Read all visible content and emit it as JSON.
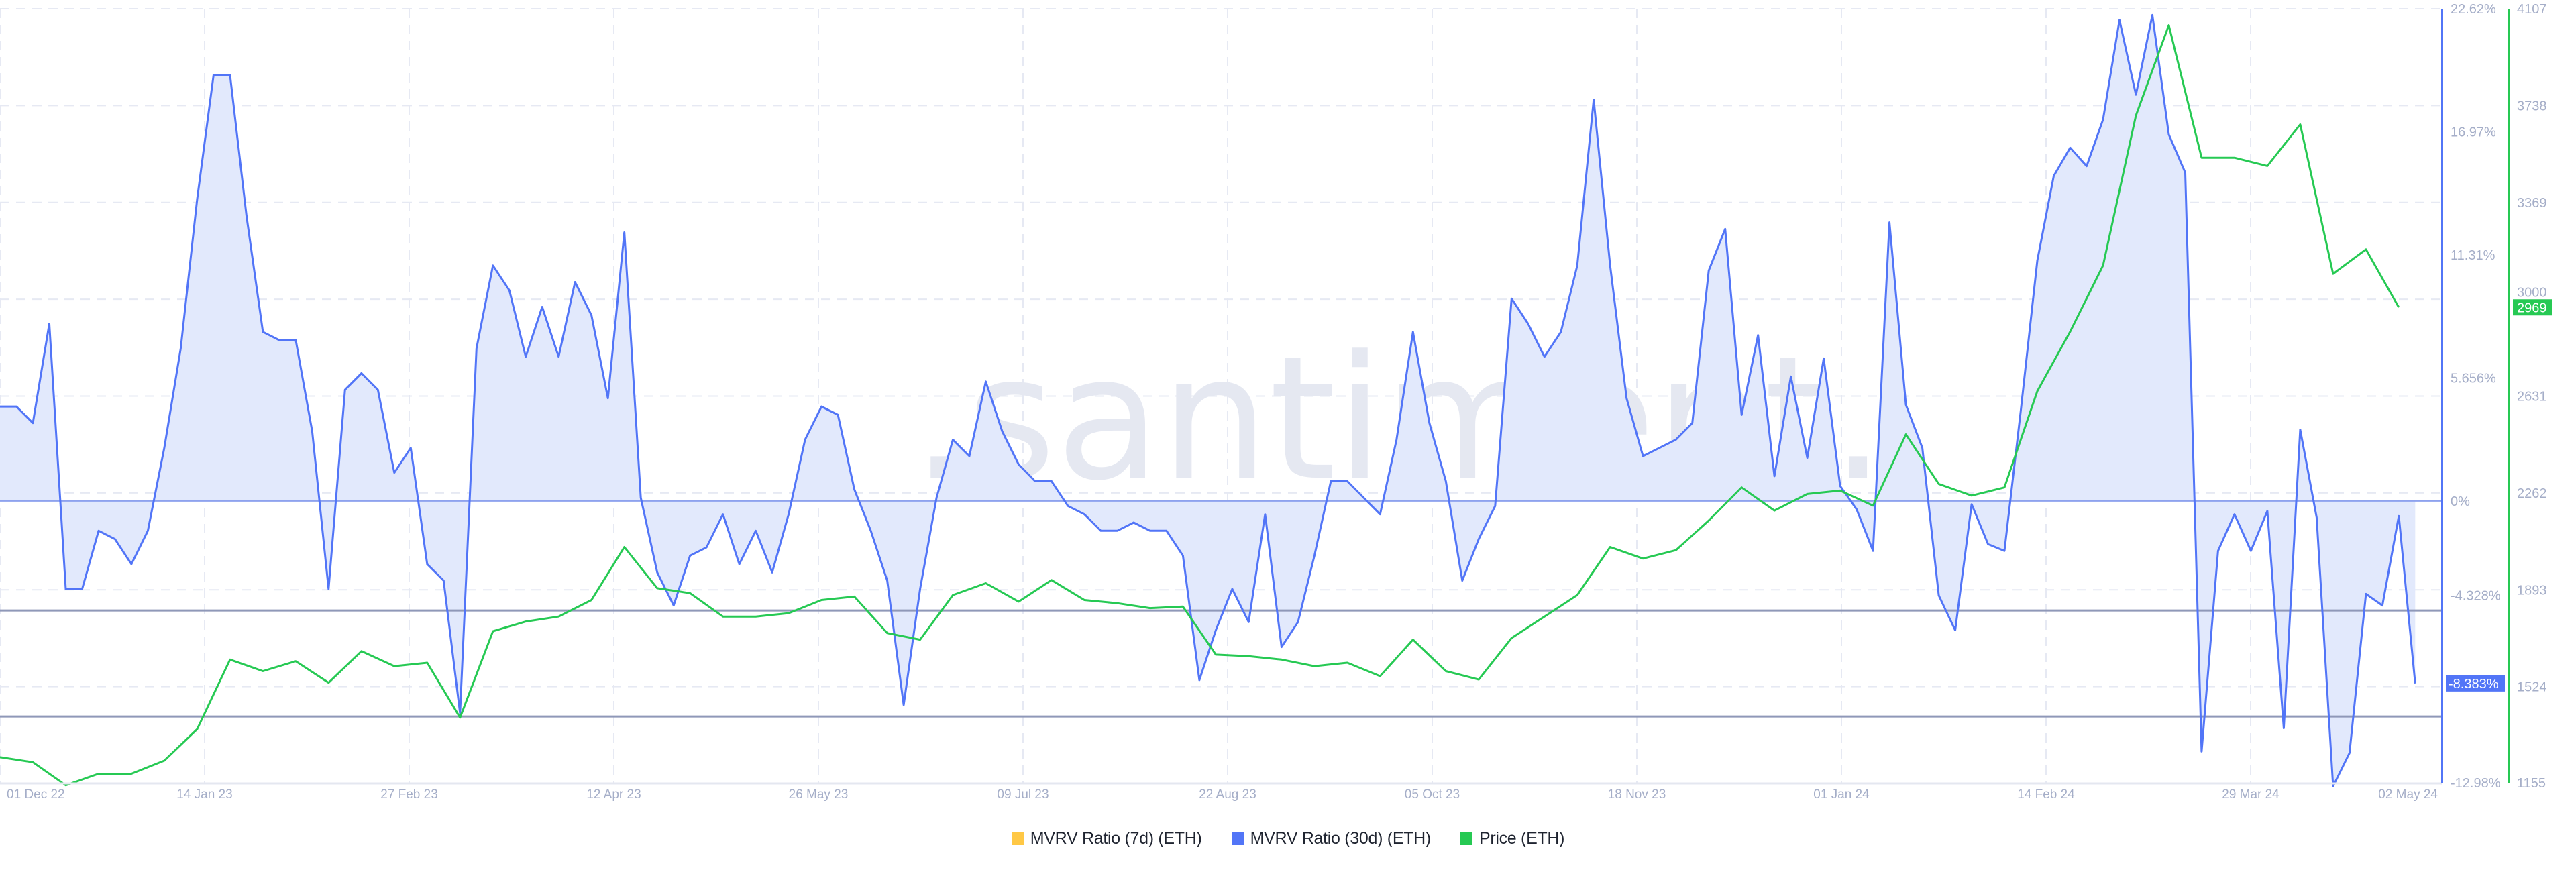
{
  "chart_data": {
    "type": "line",
    "title": "",
    "watermark": ".santiment.",
    "x_axis": {
      "start_date": "01 Dec 22",
      "tick_interval_days": 43,
      "tick_labels": [
        "01 Dec 22",
        "14 Jan 23",
        "27 Feb 23",
        "12 Apr 23",
        "26 May 23",
        "09 Jul 23",
        "22 Aug 23",
        "05 Oct 23",
        "18 Nov 23",
        "01 Jan 24",
        "14 Feb 24",
        "29 Mar 24",
        "02 May 24"
      ]
    },
    "mvrv_axis": {
      "min": -12.98,
      "max": 22.62,
      "unit": "%",
      "tick_values": [
        22.62,
        16.97,
        11.31,
        5.656,
        0,
        -4.328,
        -12.98
      ],
      "tick_labels": [
        "22.62%",
        "16.97%",
        "11.31%",
        "5.656%",
        "0%",
        "-4.328%",
        "-12.98%"
      ]
    },
    "price_axis": {
      "min": 1155,
      "max": 4107,
      "tick_values": [
        4107,
        3738,
        3369,
        3000,
        2631,
        2262,
        1893,
        1524,
        1155
      ],
      "tick_labels": [
        "4107",
        "3738",
        "3369",
        "3000",
        "2631",
        "2262",
        "1893",
        "1524",
        "1155"
      ]
    },
    "reference_lines": [
      {
        "axis": "mvrv",
        "value": 0,
        "color": "#8ea2ee"
      },
      {
        "axis": "mvrv",
        "value": -5.03,
        "color": "#8f98b8"
      },
      {
        "axis": "mvrv",
        "value": -9.9,
        "color": "#8f98b8"
      }
    ],
    "series": [
      {
        "name": "MVRV Ratio (7d) (ETH)",
        "axis": "mvrv",
        "color": "#ffc845",
        "values": []
      },
      {
        "name": "MVRV Ratio (30d) (ETH)",
        "axis": "mvrv",
        "color": "#5275f7",
        "fill": "#e2e9fc",
        "step_days": 3.453,
        "values": [
          4.34,
          4.34,
          3.58,
          8.15,
          -4.04,
          -4.04,
          -1.37,
          -1.75,
          -2.9,
          -1.37,
          2.44,
          7.01,
          13.87,
          19.58,
          19.58,
          13.11,
          7.77,
          7.39,
          7.39,
          3.2,
          -4.04,
          5.11,
          5.87,
          5.11,
          1.3,
          2.44,
          -2.9,
          -3.66,
          -9.75,
          7.01,
          10.82,
          9.68,
          6.63,
          8.92,
          6.63,
          10.06,
          8.53,
          4.72,
          12.34,
          0.15,
          -3.28,
          -4.8,
          -2.51,
          -2.13,
          -0.61,
          -2.9,
          -1.37,
          -3.28,
          -0.61,
          2.82,
          4.34,
          3.96,
          0.53,
          -1.37,
          -3.66,
          -9.37,
          -4.04,
          0.15,
          2.82,
          2.06,
          5.49,
          3.2,
          1.68,
          0.91,
          0.91,
          -0.23,
          -0.61,
          -1.37,
          -1.37,
          -0.99,
          -1.37,
          -1.37,
          -2.51,
          -8.23,
          -5.94,
          -4.04,
          -5.56,
          -0.61,
          -6.71,
          -5.56,
          -2.51,
          0.91,
          0.91,
          0.15,
          -0.61,
          2.82,
          7.77,
          3.58,
          0.91,
          -3.66,
          -1.75,
          -0.23,
          9.3,
          8.15,
          6.63,
          7.77,
          10.82,
          18.44,
          10.82,
          4.72,
          2.06,
          2.44,
          2.82,
          3.58,
          10.59,
          12.5,
          3.96,
          7.62,
          1.14,
          5.72,
          1.98,
          6.55,
          0.69,
          -0.38,
          -2.29,
          12.8,
          4.42,
          2.44,
          -4.34,
          -5.94,
          -0.15,
          -1.98,
          -2.29,
          4.19,
          11.05,
          14.94,
          16.23,
          15.39,
          17.53,
          22.1,
          18.67,
          22.33,
          16.84,
          15.09,
          -11.51,
          -2.29,
          -0.61,
          -2.29,
          -0.46,
          -10.44,
          3.28,
          -0.76,
          -13.11,
          -11.58,
          -4.27,
          -4.8,
          -0.69,
          -8.38
        ]
      },
      {
        "name": "Price (ETH)",
        "axis": "price",
        "color": "#26c953",
        "step_days": 6.906,
        "values": [
          1255,
          1236,
          1148,
          1192,
          1192,
          1242,
          1362,
          1627,
          1583,
          1621,
          1539,
          1659,
          1602,
          1615,
          1406,
          1735,
          1772,
          1791,
          1854,
          2056,
          1899,
          1880,
          1791,
          1791,
          1804,
          1854,
          1867,
          1728,
          1703,
          1873,
          1918,
          1848,
          1930,
          1854,
          1842,
          1823,
          1829,
          1646,
          1640,
          1627,
          1602,
          1615,
          1564,
          1703,
          1583,
          1551,
          1709,
          1791,
          1873,
          2056,
          2012,
          2044,
          2157,
          2283,
          2195,
          2258,
          2271,
          2214,
          2485,
          2296,
          2252,
          2283,
          2650,
          2877,
          3129,
          3700,
          4044,
          3539,
          3539,
          3508,
          3666,
          3097,
          3190,
          2969
        ]
      }
    ],
    "last_value_badges": {
      "mvrv": "-8.383%",
      "mvrv_value": -8.383,
      "price": "2969",
      "price_value": 2969
    },
    "legend": {
      "position": "bottom-center"
    }
  }
}
